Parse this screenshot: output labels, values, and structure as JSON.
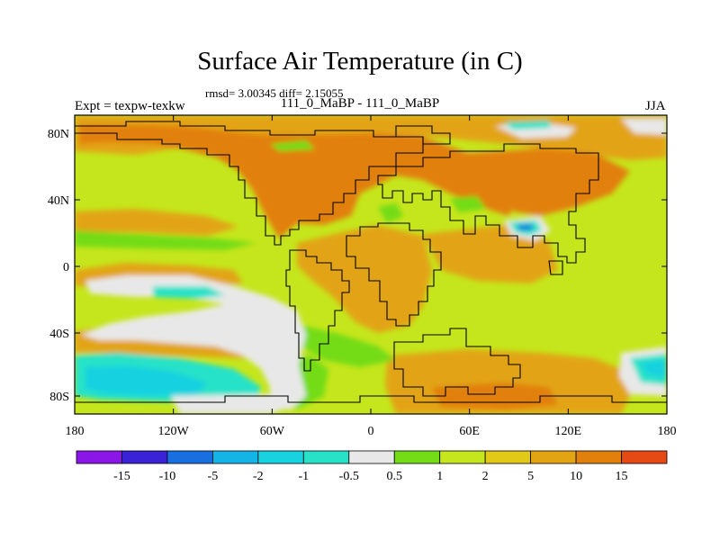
{
  "header": {
    "title": "Surface Air Temperature (in C)",
    "subtitle": "rmsd= 3.00345  diff= 2.15055",
    "left_label": "Expt = texpw-texkw",
    "center_label": "111_0_MaBP - 111_0_MaBP",
    "right_label": "JJA"
  },
  "map": {
    "lat_ticks": [
      "80N",
      "40N",
      "0",
      "40S",
      "80S"
    ],
    "lon_ticks": [
      "180",
      "120W",
      "60W",
      "0",
      "60E",
      "120E",
      "180"
    ]
  },
  "colorbar": {
    "colors": [
      "#8a17e8",
      "#3a22d6",
      "#1a6fe0",
      "#14b4e6",
      "#19d2e0",
      "#28e2c8",
      "#e8e8e8",
      "#73dc16",
      "#c5e61c",
      "#e2c918",
      "#e2a412",
      "#e2800e",
      "#e64a14"
    ],
    "labels": [
      "-15",
      "-10",
      "-5",
      "-2",
      "-1",
      "-0.5",
      "0.5",
      "1",
      "2",
      "5",
      "10",
      "15"
    ]
  }
}
